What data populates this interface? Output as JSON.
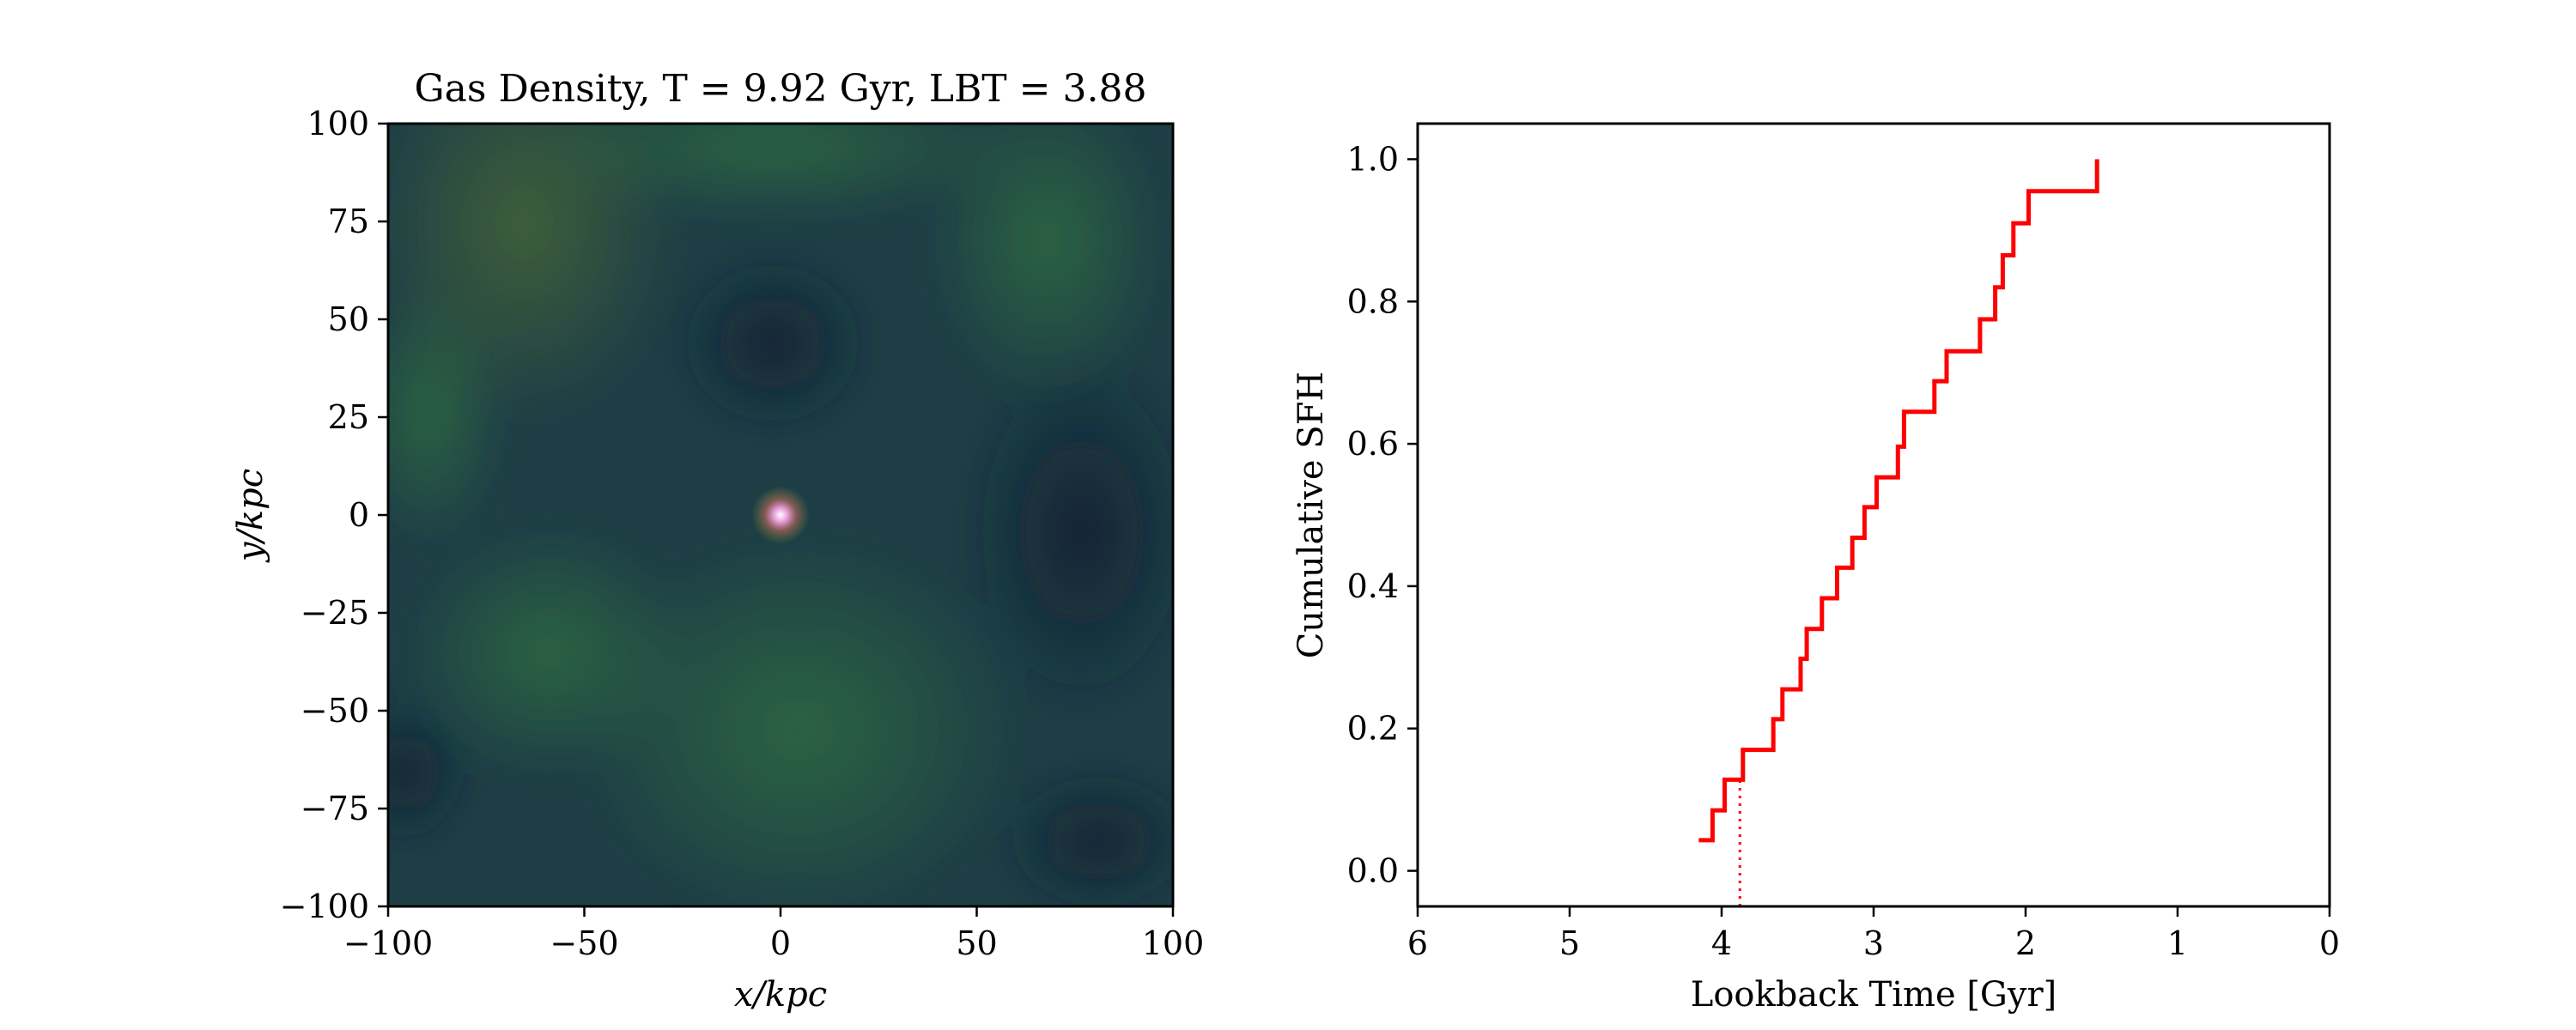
{
  "colors": {
    "step_line": "#ff0000",
    "marker_line": "#ff0000",
    "map_low": "#152a3c",
    "map_mid": "#2d6a3c",
    "map_high": "#5a7a30",
    "core": "#f0a0e0"
  },
  "chart_data": [
    {
      "type": "heatmap",
      "title": "Gas Density, T = 9.92 Gyr, LBT = 3.88",
      "xlabel": "x/kpc",
      "ylabel": "y/kpc",
      "xlim": [
        -100,
        100
      ],
      "ylim": [
        -100,
        100
      ],
      "x_ticks": [
        "−100",
        "−50",
        "0",
        "50",
        "100"
      ],
      "x_tick_values": [
        -100,
        -50,
        0,
        50,
        100
      ],
      "y_ticks": [
        "−100",
        "−75",
        "−50",
        "−25",
        "0",
        "25",
        "50",
        "75",
        "100"
      ],
      "y_tick_values": [
        -100,
        -75,
        -50,
        -25,
        0,
        25,
        50,
        75,
        100
      ],
      "colormap": "dark blue to green, bright pink core at center",
      "bright_core_position": [
        0,
        0
      ]
    },
    {
      "type": "line",
      "step": true,
      "xlabel": "Lookback Time [Gyr]",
      "ylabel": "Cumulative SFH",
      "xlim": [
        6,
        0
      ],
      "ylim": [
        -0.05,
        1.05
      ],
      "x_ticks": [
        "6",
        "5",
        "4",
        "3",
        "2",
        "1",
        "0"
      ],
      "x_tick_values": [
        6,
        5,
        4,
        3,
        2,
        1,
        0
      ],
      "y_ticks": [
        "0.0",
        "0.2",
        "0.4",
        "0.6",
        "0.8",
        "1.0"
      ],
      "y_tick_values": [
        0.0,
        0.2,
        0.4,
        0.6,
        0.8,
        1.0
      ],
      "series": [
        {
          "x": [
            4.15,
            4.06,
            4.06,
            3.98,
            3.98,
            3.86,
            3.86,
            3.66,
            3.66,
            3.6,
            3.6,
            3.48,
            3.48,
            3.44,
            3.44,
            3.34,
            3.34,
            3.24,
            3.24,
            3.14,
            3.14,
            3.06,
            3.06,
            2.98,
            2.98,
            2.84,
            2.84,
            2.8,
            2.8,
            2.6,
            2.6,
            2.52,
            2.52,
            2.3,
            2.3,
            2.2,
            2.2,
            2.15,
            2.15,
            2.08,
            2.08,
            1.98,
            1.98,
            1.53,
            1.53
          ],
          "y": [
            0.043,
            0.043,
            0.085,
            0.085,
            0.128,
            0.128,
            0.17,
            0.17,
            0.213,
            0.213,
            0.255,
            0.255,
            0.298,
            0.298,
            0.34,
            0.34,
            0.383,
            0.383,
            0.426,
            0.426,
            0.468,
            0.468,
            0.511,
            0.511,
            0.553,
            0.553,
            0.596,
            0.596,
            0.645,
            0.645,
            0.688,
            0.688,
            0.73,
            0.73,
            0.775,
            0.775,
            0.82,
            0.82,
            0.865,
            0.865,
            0.91,
            0.91,
            0.955,
            0.955,
            1.0
          ]
        }
      ],
      "marker_x": 3.88,
      "marker_y_range": [
        -0.05,
        0.128
      ],
      "marker_style": "dotted"
    }
  ]
}
